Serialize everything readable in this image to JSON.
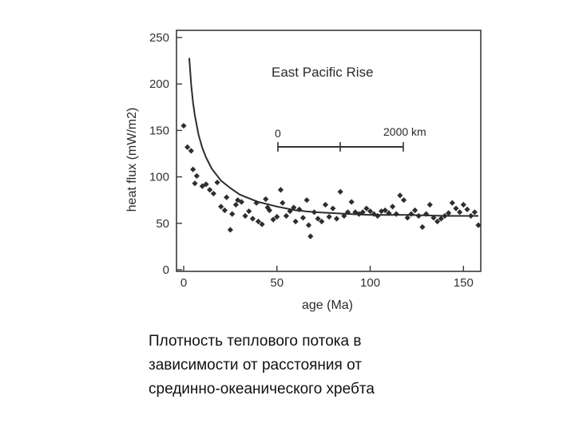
{
  "chart_data": {
    "type": "scatter",
    "title": "East Pacific Rise",
    "xlabel": "age (Ma)",
    "ylabel": "heat flux (mW/m2)",
    "xlim": [
      0,
      158
    ],
    "ylim": [
      0,
      250
    ],
    "x_ticks": [
      0,
      50,
      100,
      150
    ],
    "y_ticks": [
      0,
      50,
      100,
      150,
      200,
      250
    ],
    "grid": false,
    "legend": "none",
    "scale_bar": {
      "start_label": "0",
      "end_label": "2000 km"
    },
    "series": [
      {
        "kind": "points",
        "points": [
          [
            0,
            155
          ],
          [
            2,
            132
          ],
          [
            4,
            128
          ],
          [
            5,
            108
          ],
          [
            6,
            93
          ],
          [
            7,
            101
          ],
          [
            10,
            90
          ],
          [
            12,
            92
          ],
          [
            14,
            86
          ],
          [
            16,
            82
          ],
          [
            18,
            94
          ],
          [
            20,
            68
          ],
          [
            22,
            64
          ],
          [
            23,
            78
          ],
          [
            25,
            43
          ],
          [
            26,
            60
          ],
          [
            28,
            70
          ],
          [
            29,
            75
          ],
          [
            31,
            73
          ],
          [
            33,
            58
          ],
          [
            35,
            63
          ],
          [
            37,
            55
          ],
          [
            39,
            72
          ],
          [
            40,
            52
          ],
          [
            42,
            49
          ],
          [
            44,
            76
          ],
          [
            45,
            67
          ],
          [
            46,
            64
          ],
          [
            48,
            54
          ],
          [
            50,
            57
          ],
          [
            52,
            86
          ],
          [
            53,
            72
          ],
          [
            55,
            58
          ],
          [
            57,
            63
          ],
          [
            59,
            67
          ],
          [
            60,
            52
          ],
          [
            62,
            65
          ],
          [
            64,
            56
          ],
          [
            66,
            75
          ],
          [
            67,
            48
          ],
          [
            68,
            36
          ],
          [
            70,
            62
          ],
          [
            72,
            55
          ],
          [
            74,
            52
          ],
          [
            76,
            70
          ],
          [
            78,
            57
          ],
          [
            80,
            66
          ],
          [
            82,
            55
          ],
          [
            84,
            84
          ],
          [
            86,
            58
          ],
          [
            88,
            62
          ],
          [
            90,
            73
          ],
          [
            92,
            62
          ],
          [
            94,
            60
          ],
          [
            96,
            62
          ],
          [
            98,
            66
          ],
          [
            100,
            63
          ],
          [
            102,
            60
          ],
          [
            104,
            58
          ],
          [
            106,
            63
          ],
          [
            108,
            64
          ],
          [
            110,
            61
          ],
          [
            112,
            68
          ],
          [
            114,
            60
          ],
          [
            116,
            80
          ],
          [
            118,
            75
          ],
          [
            120,
            56
          ],
          [
            122,
            60
          ],
          [
            124,
            64
          ],
          [
            126,
            58
          ],
          [
            128,
            46
          ],
          [
            130,
            60
          ],
          [
            132,
            70
          ],
          [
            134,
            56
          ],
          [
            136,
            52
          ],
          [
            138,
            55
          ],
          [
            140,
            58
          ],
          [
            142,
            61
          ],
          [
            144,
            72
          ],
          [
            146,
            66
          ],
          [
            148,
            62
          ],
          [
            150,
            70
          ],
          [
            152,
            65
          ],
          [
            154,
            58
          ],
          [
            156,
            62
          ],
          [
            158,
            48
          ]
        ]
      },
      {
        "kind": "curve",
        "points": [
          [
            3,
            228
          ],
          [
            4,
            200
          ],
          [
            5,
            180
          ],
          [
            6,
            166
          ],
          [
            8,
            145
          ],
          [
            10,
            131
          ],
          [
            12,
            121
          ],
          [
            15,
            109
          ],
          [
            20,
            96
          ],
          [
            25,
            88
          ],
          [
            30,
            81
          ],
          [
            35,
            77
          ],
          [
            40,
            73
          ],
          [
            50,
            68
          ],
          [
            60,
            64
          ],
          [
            70,
            62
          ],
          [
            80,
            61
          ],
          [
            90,
            60
          ],
          [
            100,
            59
          ],
          [
            120,
            59
          ],
          [
            140,
            58
          ],
          [
            158,
            58
          ]
        ]
      }
    ]
  },
  "caption": {
    "lines": [
      "Плотность теплового потока в",
      "зависимости от расстояния от",
      "срединно-океанического хребта"
    ]
  }
}
